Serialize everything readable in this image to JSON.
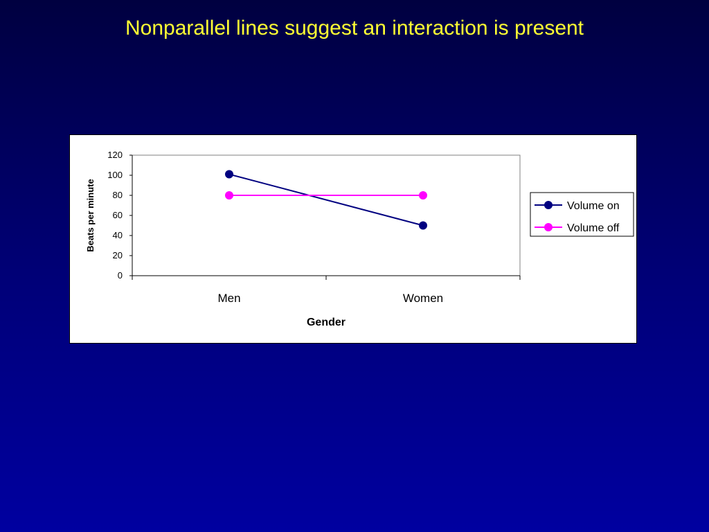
{
  "slide": {
    "title": "Nonparallel lines suggest an interaction is present"
  },
  "chart_data": {
    "type": "line",
    "categories": [
      "Men",
      "Women"
    ],
    "series": [
      {
        "name": "Volume on",
        "values": [
          101,
          50
        ],
        "color": "#000080"
      },
      {
        "name": "Volume off",
        "values": [
          80,
          80
        ],
        "color": "#ff00ff"
      }
    ],
    "xlabel": "Gender",
    "ylabel": "Beats per minute",
    "ylim": [
      0,
      120
    ],
    "yticks": [
      0,
      20,
      40,
      60,
      80,
      100,
      120
    ],
    "grid": false,
    "legend": "right"
  }
}
